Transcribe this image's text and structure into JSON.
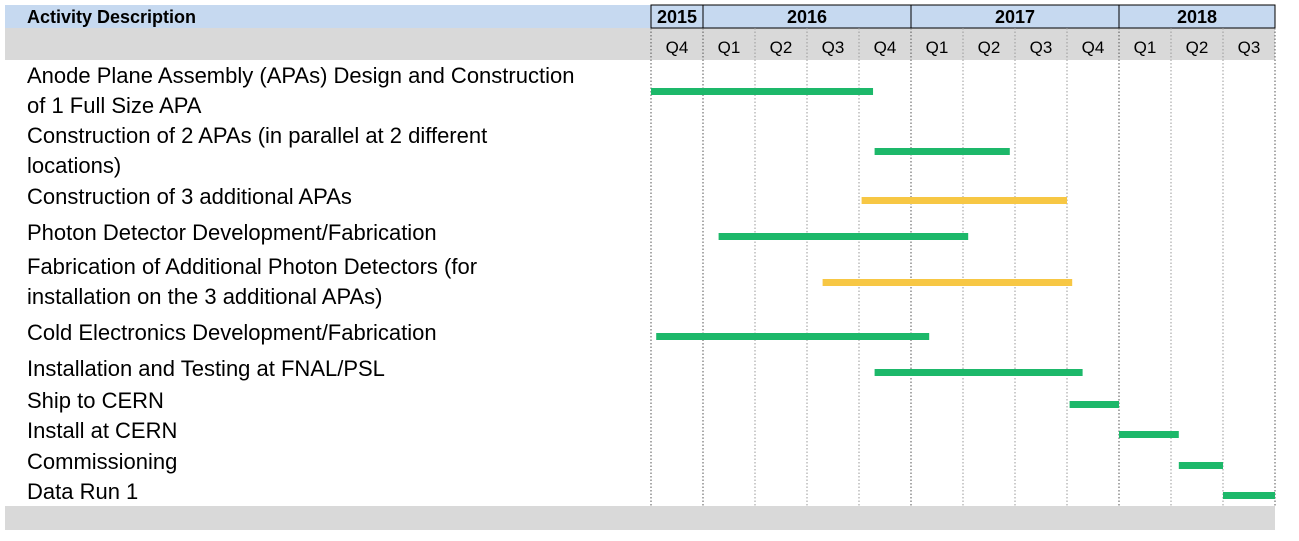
{
  "chart_data": {
    "type": "gantt",
    "header_label": "Activity Description",
    "years": [
      {
        "label": "2015",
        "start": 0,
        "end": 1
      },
      {
        "label": "2016",
        "start": 1,
        "end": 5
      },
      {
        "label": "2017",
        "start": 5,
        "end": 9
      },
      {
        "label": "2018",
        "start": 9,
        "end": 12
      }
    ],
    "quarters": [
      "Q4",
      "Q1",
      "Q2",
      "Q3",
      "Q4",
      "Q1",
      "Q2",
      "Q3",
      "Q4",
      "Q1",
      "Q2",
      "Q3"
    ],
    "colors": {
      "baseline": "#1db86a",
      "additional": "#f7c744",
      "header_blue": "#c6d9f0",
      "header_gray": "#d9d9d9"
    },
    "activities": [
      {
        "lines": [
          "Anode Plane Assembly (APAs) Design and Construction",
          "of 1 Full Size APA"
        ],
        "start": 0.0,
        "end": 4.27,
        "status": "baseline"
      },
      {
        "lines": [
          "Construction of 2 APAs (in parallel at 2 different",
          "locations)"
        ],
        "start": 4.3,
        "end": 6.9,
        "status": "baseline"
      },
      {
        "lines": [
          "Construction of 3 additional APAs"
        ],
        "start": 4.05,
        "end": 8.0,
        "status": "additional"
      },
      {
        "lines": [
          "Photon Detector Development/Fabrication"
        ],
        "start": 1.3,
        "end": 6.1,
        "status": "baseline"
      },
      {
        "lines": [
          "Fabrication of Additional Photon Detectors (for",
          "installation on the 3 additional APAs)"
        ],
        "start": 3.3,
        "end": 8.1,
        "status": "additional"
      },
      {
        "lines": [
          "Cold Electronics Development/Fabrication"
        ],
        "start": 0.1,
        "end": 5.35,
        "status": "baseline"
      },
      {
        "lines": [
          "Installation and Testing at FNAL/PSL"
        ],
        "start": 4.3,
        "end": 8.3,
        "status": "baseline"
      },
      {
        "lines": [
          "Ship to CERN"
        ],
        "start": 8.05,
        "end": 9.0,
        "status": "baseline"
      },
      {
        "lines": [
          "Install at CERN"
        ],
        "start": 9.0,
        "end": 10.15,
        "status": "baseline"
      },
      {
        "lines": [
          "Commissioning"
        ],
        "start": 10.15,
        "end": 11.0,
        "status": "baseline"
      },
      {
        "lines": [
          "Data Run 1"
        ],
        "start": 11.0,
        "end": 12.0,
        "status": "baseline"
      }
    ]
  }
}
